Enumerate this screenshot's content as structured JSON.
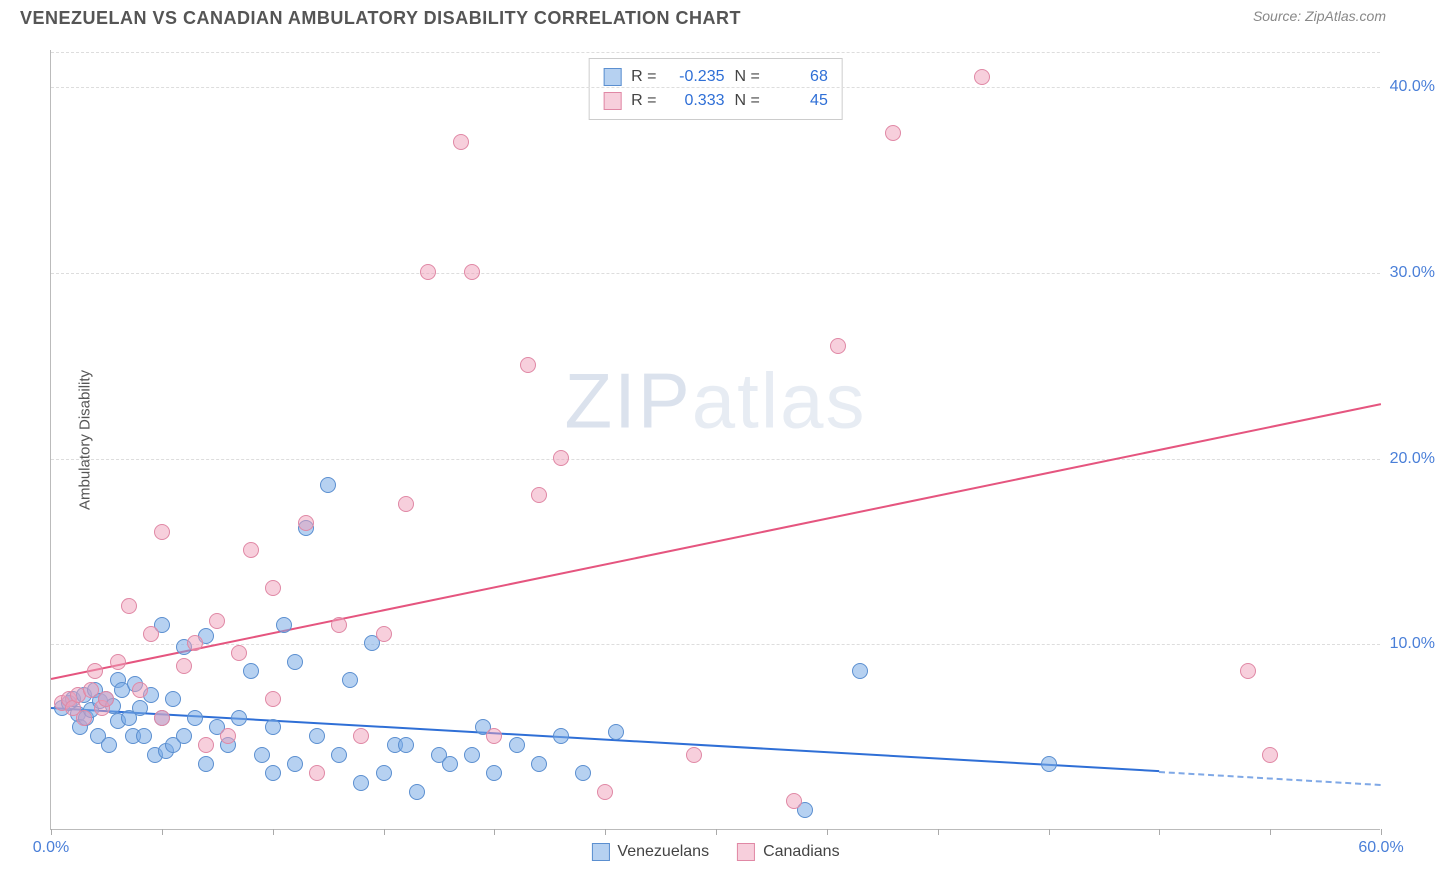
{
  "header": {
    "title": "VENEZUELAN VS CANADIAN AMBULATORY DISABILITY CORRELATION CHART",
    "source": "Source: ZipAtlas.com"
  },
  "watermark": {
    "prefix": "ZIP",
    "suffix": "atlas"
  },
  "chart": {
    "type": "scatter",
    "ylabel": "Ambulatory Disability",
    "xlim": [
      0,
      60
    ],
    "ylim": [
      0,
      42
    ],
    "xtick_positions": [
      0,
      5,
      10,
      15,
      20,
      25,
      30,
      35,
      40,
      45,
      50,
      55,
      60
    ],
    "xtick_labels": {
      "0": "0.0%",
      "60": "60.0%"
    },
    "ytick_positions": [
      10,
      20,
      30,
      40
    ],
    "ytick_labels": [
      "10.0%",
      "20.0%",
      "30.0%",
      "40.0%"
    ],
    "background_color": "#ffffff",
    "grid_color": "#dddddd",
    "axis_color": "#bbbbbb",
    "label_fontsize": 15,
    "tick_fontsize": 16,
    "tick_color": "#4a7fd8",
    "marker_radius": 8,
    "series": [
      {
        "name": "Venezuelans",
        "color_fill": "rgba(122,172,230,0.55)",
        "color_stroke": "#5b8fd0",
        "stats": {
          "R": -0.235,
          "N": 68
        },
        "trend": {
          "x1": 0,
          "y1": 6.6,
          "x2": 50,
          "y2": 3.2,
          "color": "#2f6fd6",
          "width": 2
        },
        "trend_extrapolate": {
          "x1": 50,
          "y1": 3.2,
          "x2": 60,
          "y2": 2.5,
          "dash": true
        },
        "points": [
          [
            0.5,
            6.5
          ],
          [
            0.8,
            6.8
          ],
          [
            1.0,
            7.0
          ],
          [
            1.2,
            6.2
          ],
          [
            1.3,
            5.5
          ],
          [
            1.5,
            7.2
          ],
          [
            1.6,
            6.0
          ],
          [
            1.8,
            6.4
          ],
          [
            2.0,
            7.5
          ],
          [
            2.1,
            5.0
          ],
          [
            2.2,
            6.9
          ],
          [
            2.5,
            7.0
          ],
          [
            2.6,
            4.5
          ],
          [
            2.8,
            6.6
          ],
          [
            3.0,
            5.8
          ],
          [
            3.0,
            8.0
          ],
          [
            3.2,
            7.5
          ],
          [
            3.5,
            6.0
          ],
          [
            3.7,
            5.0
          ],
          [
            3.8,
            7.8
          ],
          [
            4.0,
            6.5
          ],
          [
            4.2,
            5.0
          ],
          [
            4.5,
            7.2
          ],
          [
            4.7,
            4.0
          ],
          [
            5.0,
            6.0
          ],
          [
            5.2,
            4.2
          ],
          [
            5.5,
            7.0
          ],
          [
            5.0,
            11.0
          ],
          [
            5.5,
            4.5
          ],
          [
            6.0,
            5.0
          ],
          [
            6.5,
            6.0
          ],
          [
            6.0,
            9.8
          ],
          [
            7.0,
            10.4
          ],
          [
            7.0,
            3.5
          ],
          [
            7.5,
            5.5
          ],
          [
            8.0,
            4.5
          ],
          [
            8.5,
            6.0
          ],
          [
            9.0,
            8.5
          ],
          [
            9.5,
            4.0
          ],
          [
            10.0,
            5.5
          ],
          [
            10.0,
            3.0
          ],
          [
            10.5,
            11.0
          ],
          [
            11.0,
            9.0
          ],
          [
            11.5,
            16.2
          ],
          [
            11.0,
            3.5
          ],
          [
            12.0,
            5.0
          ],
          [
            12.5,
            18.5
          ],
          [
            13.0,
            4.0
          ],
          [
            13.5,
            8.0
          ],
          [
            14.0,
            2.5
          ],
          [
            14.5,
            10.0
          ],
          [
            15.0,
            3.0
          ],
          [
            15.5,
            4.5
          ],
          [
            16.0,
            4.5
          ],
          [
            16.5,
            2.0
          ],
          [
            17.5,
            4.0
          ],
          [
            18.0,
            3.5
          ],
          [
            19.0,
            4.0
          ],
          [
            19.5,
            5.5
          ],
          [
            20.0,
            3.0
          ],
          [
            21.0,
            4.5
          ],
          [
            22.0,
            3.5
          ],
          [
            23.0,
            5.0
          ],
          [
            24.0,
            3.0
          ],
          [
            25.5,
            5.2
          ],
          [
            34.0,
            1.0
          ],
          [
            36.5,
            8.5
          ],
          [
            45.0,
            3.5
          ]
        ]
      },
      {
        "name": "Canadians",
        "color_fill": "rgba(240,160,185,0.50)",
        "color_stroke": "#e088a5",
        "stats": {
          "R": 0.333,
          "N": 45
        },
        "trend": {
          "x1": 0,
          "y1": 8.2,
          "x2": 60,
          "y2": 23.0,
          "color": "#e5557f",
          "width": 2
        },
        "points": [
          [
            0.5,
            6.8
          ],
          [
            0.8,
            7.0
          ],
          [
            1.0,
            6.5
          ],
          [
            1.2,
            7.2
          ],
          [
            1.5,
            6.0
          ],
          [
            1.8,
            7.5
          ],
          [
            2.0,
            8.5
          ],
          [
            2.3,
            6.5
          ],
          [
            2.5,
            7.0
          ],
          [
            3.0,
            9.0
          ],
          [
            3.5,
            12.0
          ],
          [
            4.0,
            7.5
          ],
          [
            4.5,
            10.5
          ],
          [
            5.0,
            6.0
          ],
          [
            5.0,
            16.0
          ],
          [
            6.0,
            8.8
          ],
          [
            6.5,
            10.0
          ],
          [
            7.0,
            4.5
          ],
          [
            7.5,
            11.2
          ],
          [
            8.0,
            5.0
          ],
          [
            8.5,
            9.5
          ],
          [
            9.0,
            15.0
          ],
          [
            10.0,
            7.0
          ],
          [
            10.0,
            13.0
          ],
          [
            11.5,
            16.5
          ],
          [
            12.0,
            3.0
          ],
          [
            13.0,
            11.0
          ],
          [
            14.0,
            5.0
          ],
          [
            15.0,
            10.5
          ],
          [
            16.0,
            17.5
          ],
          [
            17.0,
            30.0
          ],
          [
            18.5,
            37.0
          ],
          [
            19.0,
            30.0
          ],
          [
            20.0,
            5.0
          ],
          [
            21.5,
            25.0
          ],
          [
            22.0,
            18.0
          ],
          [
            23.0,
            20.0
          ],
          [
            25.0,
            2.0
          ],
          [
            29.0,
            4.0
          ],
          [
            33.5,
            1.5
          ],
          [
            35.5,
            26.0
          ],
          [
            38.0,
            37.5
          ],
          [
            42.0,
            40.5
          ],
          [
            54.0,
            8.5
          ],
          [
            55.0,
            4.0
          ]
        ]
      }
    ],
    "legend_top": [
      {
        "swatch": "blue",
        "R_label": "R =",
        "R": "-0.235",
        "N_label": "N =",
        "N": "68"
      },
      {
        "swatch": "pink",
        "R_label": "R =",
        "R": "0.333",
        "N_label": "N =",
        "N": "45"
      }
    ],
    "legend_bottom": [
      {
        "swatch": "blue",
        "label": "Venezuelans"
      },
      {
        "swatch": "pink",
        "label": "Canadians"
      }
    ]
  }
}
